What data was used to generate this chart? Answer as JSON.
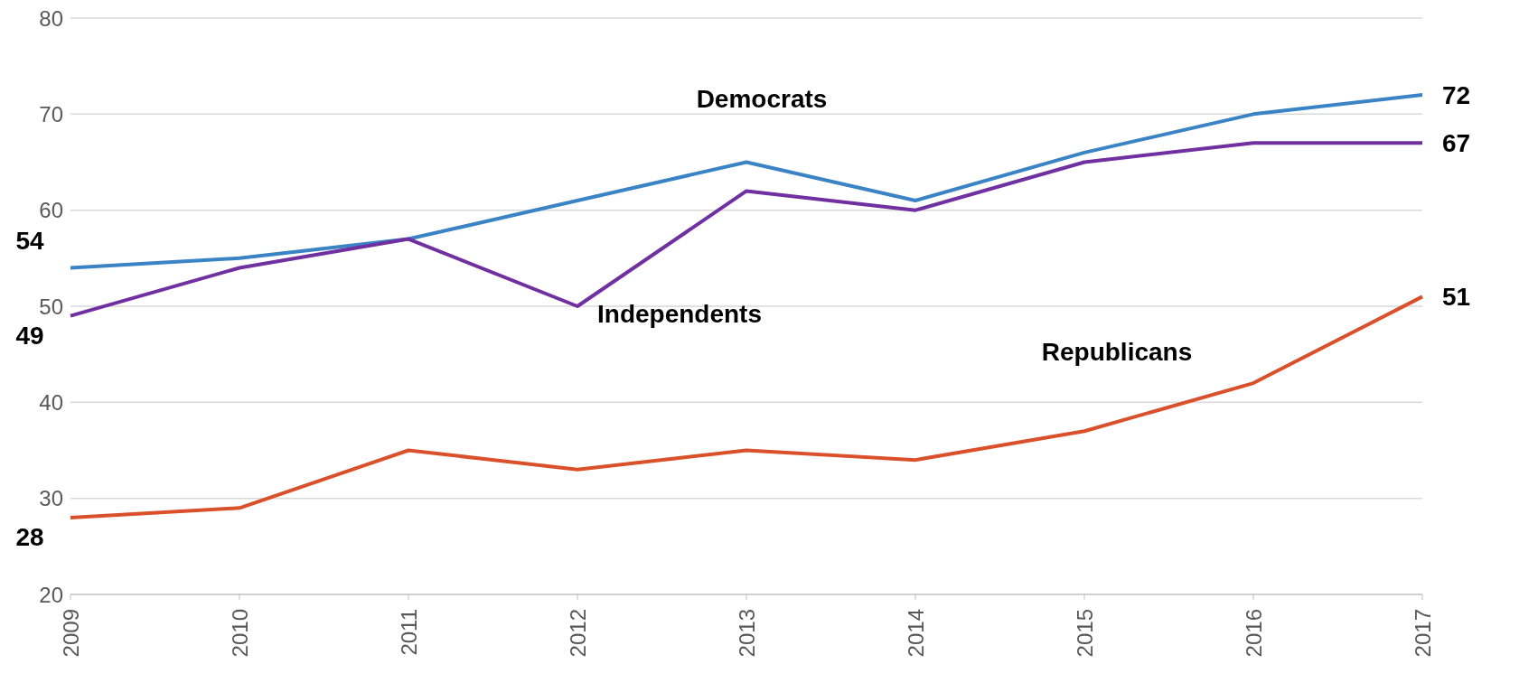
{
  "chart_data": {
    "type": "line",
    "categories": [
      "2009",
      "2010",
      "2011",
      "2012",
      "2013",
      "2014",
      "2015",
      "2016",
      "2017"
    ],
    "series": [
      {
        "name": "Democrats",
        "color": "#3a83c4",
        "values": [
          54,
          55,
          57,
          61,
          65,
          61,
          66,
          70,
          72
        ],
        "value_labels": [
          "54",
          null,
          null,
          null,
          null,
          null,
          null,
          null,
          "72"
        ]
      },
      {
        "name": "Independents",
        "color": "#7030a0",
        "values": [
          49,
          54,
          57,
          50,
          62,
          60,
          65,
          67,
          67
        ],
        "value_labels": [
          "49",
          null,
          null,
          null,
          null,
          null,
          null,
          null,
          "67"
        ]
      },
      {
        "name": "Republicans",
        "color": "#d9502a",
        "values": [
          28,
          29,
          35,
          33,
          35,
          34,
          37,
          42,
          51
        ],
        "value_labels": [
          "28",
          null,
          null,
          null,
          null,
          null,
          null,
          null,
          "51"
        ]
      }
    ],
    "ylim": [
      20,
      80
    ],
    "yticks": [
      20,
      30,
      40,
      50,
      60,
      70,
      80
    ],
    "grid": "y",
    "legend": false,
    "marker": "none",
    "line_style": "solid"
  }
}
